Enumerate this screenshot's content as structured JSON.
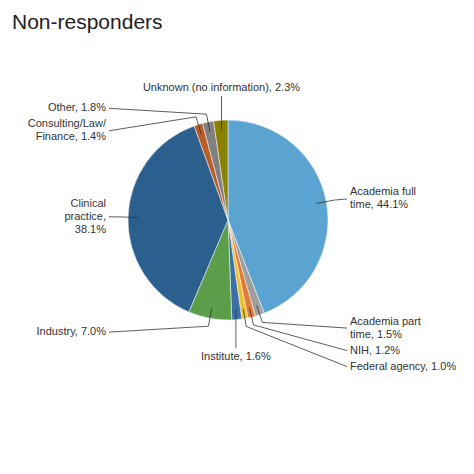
{
  "chart_data": {
    "type": "pie",
    "title": "Non-responders",
    "categories": [
      "Academia full\ntime, 44.1%",
      "Academia part\ntime, 1.5%",
      "NIH, 1.2%",
      "Federal agency, 1.0%",
      "Institute, 1.6%",
      "Industry, 7.0%",
      "Clinical\npractice,\n38.1%",
      "Consulting/Law/\nFinance, 1.4%",
      "Other, 1.8%",
      "Unknown (no information), 2.3%"
    ],
    "values": [
      44.1,
      1.5,
      1.2,
      1.0,
      1.6,
      7.0,
      38.1,
      1.4,
      1.8,
      2.3
    ],
    "colors": [
      "#5BA3D0",
      "#A0A0A0",
      "#E07B39",
      "#F0C030",
      "#3A6FA8",
      "#5A9E4A",
      "#2B5F8E",
      "#B85C2A",
      "#808080",
      "#8B8000"
    ]
  }
}
